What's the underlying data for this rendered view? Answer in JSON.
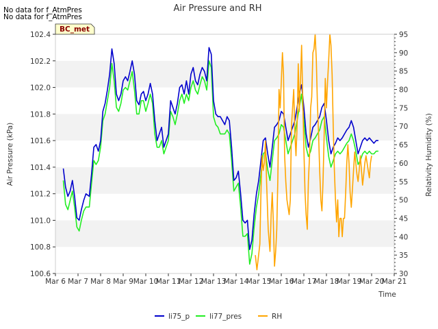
{
  "notes": [
    "No data for f_AtmPres",
    "No data for f_AtmPres"
  ],
  "badge": "BC_met",
  "chart_data": {
    "type": "line",
    "title": "Air Pressure and RH",
    "xlabel": "Time",
    "ylabel": "Air Pressure (kPa)",
    "y2label": "Relativity Humidity (%)",
    "xlim": [
      0,
      15
    ],
    "ylim": [
      100.6,
      102.4
    ],
    "y2lim": [
      30,
      95
    ],
    "x_ticks": [
      "Mar 6",
      "Mar 7",
      "Mar 8",
      "Mar 9",
      "Mar 10",
      "Mar 11",
      "Mar 12",
      "Mar 13",
      "Mar 14",
      "Mar 15",
      "Mar 16",
      "Mar 17",
      "Mar 18",
      "Mar 19",
      "Mar 20",
      "Mar 21"
    ],
    "y_ticks": [
      "100.6",
      "100.8",
      "101.0",
      "101.2",
      "101.4",
      "101.6",
      "101.8",
      "102.0",
      "102.2",
      "102.4"
    ],
    "y2_ticks": [
      "30",
      "35",
      "40",
      "45",
      "50",
      "55",
      "60",
      "65",
      "70",
      "75",
      "80",
      "85",
      "90",
      "95"
    ],
    "grid": "horizontal bands",
    "legend_position": "bottom",
    "colors": {
      "li75_p": "#0000cc",
      "li77_pres": "#22ee22",
      "RH": "#ffa500",
      "band": "#f2f2f2",
      "badge_bg": "#ffffcc"
    },
    "series": [
      {
        "name": "li75_p",
        "axis": "left",
        "x": [
          0.35,
          0.45,
          0.55,
          0.65,
          0.75,
          0.85,
          0.95,
          1.05,
          1.15,
          1.25,
          1.35,
          1.5,
          1.6,
          1.7,
          1.8,
          1.9,
          2.0,
          2.1,
          2.2,
          2.3,
          2.4,
          2.5,
          2.6,
          2.7,
          2.8,
          2.9,
          3.0,
          3.1,
          3.2,
          3.3,
          3.4,
          3.5,
          3.6,
          3.7,
          3.8,
          3.9,
          4.0,
          4.1,
          4.2,
          4.3,
          4.4,
          4.5,
          4.6,
          4.7,
          4.8,
          4.9,
          5.0,
          5.1,
          5.2,
          5.3,
          5.4,
          5.5,
          5.6,
          5.7,
          5.8,
          5.9,
          6.0,
          6.1,
          6.2,
          6.3,
          6.4,
          6.5,
          6.6,
          6.7,
          6.8,
          6.9,
          7.0,
          7.1,
          7.2,
          7.3,
          7.4,
          7.5,
          7.6,
          7.7,
          7.8,
          7.9,
          8.0,
          8.1,
          8.2,
          8.3,
          8.4,
          8.5,
          8.6,
          8.7,
          8.8,
          8.9,
          9.0,
          9.1,
          9.2,
          9.3,
          9.4,
          9.5,
          9.6,
          9.7,
          9.8,
          9.9,
          10.0,
          10.1,
          10.2,
          10.3,
          10.4,
          10.5,
          10.6,
          10.7,
          10.8,
          10.9,
          11.0,
          11.1,
          11.2,
          11.3,
          11.4,
          11.5,
          11.6,
          11.7,
          11.8,
          11.9,
          12.0,
          12.1,
          12.2,
          12.3,
          12.4,
          12.5,
          12.6,
          12.7,
          12.8,
          12.9,
          13.0,
          13.1,
          13.2,
          13.3,
          13.4,
          13.5,
          13.6,
          13.7,
          13.8,
          13.9,
          14.0,
          14.1,
          14.2,
          14.3
        ],
        "y": [
          101.39,
          101.25,
          101.18,
          101.22,
          101.3,
          101.18,
          101.02,
          101.0,
          101.08,
          101.15,
          101.2,
          101.18,
          101.35,
          101.55,
          101.57,
          101.52,
          101.6,
          101.82,
          101.88,
          101.98,
          102.1,
          102.29,
          102.18,
          101.95,
          101.9,
          101.95,
          102.05,
          102.08,
          102.05,
          102.12,
          102.2,
          102.1,
          101.9,
          101.87,
          101.95,
          101.97,
          101.9,
          101.95,
          102.03,
          101.95,
          101.75,
          101.6,
          101.65,
          101.7,
          101.55,
          101.6,
          101.65,
          101.9,
          101.85,
          101.8,
          101.88,
          102.0,
          102.02,
          101.95,
          102.05,
          101.95,
          102.1,
          102.15,
          102.05,
          102.02,
          102.1,
          102.15,
          102.12,
          102.05,
          102.3,
          102.25,
          101.9,
          101.8,
          101.78,
          101.78,
          101.75,
          101.72,
          101.78,
          101.75,
          101.55,
          101.3,
          101.32,
          101.37,
          101.2,
          101.0,
          100.98,
          101.0,
          100.78,
          100.85,
          101.05,
          101.2,
          101.3,
          101.45,
          101.6,
          101.62,
          101.5,
          101.4,
          101.55,
          101.7,
          101.72,
          101.75,
          101.82,
          101.8,
          101.7,
          101.6,
          101.65,
          101.7,
          101.75,
          101.85,
          101.95,
          102.02,
          101.85,
          101.65,
          101.55,
          101.62,
          101.7,
          101.72,
          101.75,
          101.78,
          101.85,
          101.88,
          101.75,
          101.6,
          101.5,
          101.55,
          101.58,
          101.62,
          101.6,
          101.62,
          101.65,
          101.68,
          101.7,
          101.75,
          101.7,
          101.6,
          101.5,
          101.55,
          101.6,
          101.62,
          101.6,
          101.62,
          101.6,
          101.58,
          101.6,
          101.6
        ],
        "x_full": null
      },
      {
        "name": "li77_pres",
        "axis": "left",
        "x": [
          0.35,
          0.45,
          0.55,
          0.65,
          0.75,
          0.85,
          0.95,
          1.05,
          1.15,
          1.25,
          1.35,
          1.5,
          1.6,
          1.7,
          1.8,
          1.9,
          2.0,
          2.1,
          2.2,
          2.3,
          2.4,
          2.5,
          2.6,
          2.7,
          2.8,
          2.9,
          3.0,
          3.1,
          3.2,
          3.3,
          3.4,
          3.5,
          3.6,
          3.7,
          3.8,
          3.9,
          4.0,
          4.1,
          4.2,
          4.3,
          4.4,
          4.5,
          4.6,
          4.7,
          4.8,
          4.9,
          5.0,
          5.1,
          5.2,
          5.3,
          5.4,
          5.5,
          5.6,
          5.7,
          5.8,
          5.9,
          6.0,
          6.1,
          6.2,
          6.3,
          6.4,
          6.5,
          6.6,
          6.7,
          6.8,
          6.9,
          7.0,
          7.1,
          7.2,
          7.3,
          7.4,
          7.5,
          7.6,
          7.7,
          7.8,
          7.9,
          8.0,
          8.1,
          8.2,
          8.3,
          8.4,
          8.5,
          8.6,
          8.7,
          8.8,
          8.9,
          9.0,
          9.1,
          9.2,
          9.3,
          9.4,
          9.5,
          9.6,
          9.7,
          9.8,
          9.9,
          10.0,
          10.1,
          10.2,
          10.3,
          10.4,
          10.5,
          10.6,
          10.7,
          10.8,
          10.9,
          11.0,
          11.1,
          11.2,
          11.3,
          11.4,
          11.5,
          11.6,
          11.7,
          11.8,
          11.9,
          12.0,
          12.1,
          12.2,
          12.3,
          12.4,
          12.5,
          12.6,
          12.7,
          12.8,
          12.9,
          13.0,
          13.1,
          13.2,
          13.3,
          13.4,
          13.5,
          13.6,
          13.7,
          13.8,
          13.9,
          14.0,
          14.1,
          14.2,
          14.3
        ],
        "y": [
          101.3,
          101.12,
          101.08,
          101.15,
          101.22,
          101.1,
          100.95,
          100.92,
          101.0,
          101.07,
          101.1,
          101.1,
          101.28,
          101.45,
          101.42,
          101.45,
          101.55,
          101.75,
          101.8,
          101.9,
          102.0,
          102.18,
          102.05,
          101.85,
          101.82,
          101.88,
          101.98,
          102.0,
          101.98,
          102.05,
          102.12,
          101.98,
          101.8,
          101.8,
          101.9,
          101.9,
          101.82,
          101.88,
          101.95,
          101.88,
          101.65,
          101.55,
          101.55,
          101.6,
          101.5,
          101.55,
          101.6,
          101.82,
          101.78,
          101.72,
          101.8,
          101.9,
          101.95,
          101.88,
          101.95,
          101.9,
          102.0,
          102.05,
          101.98,
          101.95,
          102.02,
          102.08,
          102.05,
          101.98,
          102.2,
          102.15,
          101.78,
          101.72,
          101.7,
          101.65,
          101.65,
          101.65,
          101.68,
          101.65,
          101.45,
          101.22,
          101.25,
          101.28,
          101.1,
          100.88,
          100.88,
          100.9,
          100.67,
          100.75,
          100.95,
          101.1,
          101.2,
          101.35,
          101.5,
          101.52,
          101.38,
          101.3,
          101.45,
          101.6,
          101.62,
          101.65,
          101.72,
          101.7,
          101.6,
          101.5,
          101.55,
          101.6,
          101.65,
          101.75,
          101.85,
          101.95,
          101.75,
          101.55,
          101.48,
          101.52,
          101.6,
          101.62,
          101.65,
          101.68,
          101.75,
          101.78,
          101.62,
          101.48,
          101.4,
          101.45,
          101.5,
          101.52,
          101.5,
          101.52,
          101.55,
          101.58,
          101.6,
          101.65,
          101.6,
          101.52,
          101.42,
          101.45,
          101.5,
          101.52,
          101.5,
          101.52,
          101.5,
          101.5,
          101.52,
          101.52
        ],
        "x_full": null
      },
      {
        "name": "RH",
        "axis": "right",
        "x": [
          8.85,
          8.92,
          8.98,
          9.05,
          9.1,
          9.15,
          9.2,
          9.25,
          9.3,
          9.35,
          9.42,
          9.5,
          9.55,
          9.6,
          9.65,
          9.7,
          9.75,
          9.8,
          9.85,
          9.9,
          9.95,
          10.0,
          10.05,
          10.1,
          10.15,
          10.2,
          10.25,
          10.3,
          10.35,
          10.4,
          10.45,
          10.5,
          10.55,
          10.6,
          10.65,
          10.7,
          10.75,
          10.8,
          10.85,
          10.9,
          10.95,
          11.0,
          11.05,
          11.1,
          11.15,
          11.2,
          11.25,
          11.3,
          11.35,
          11.4,
          11.45,
          11.5,
          11.55,
          11.6,
          11.65,
          11.7,
          11.75,
          11.8,
          11.85,
          11.9,
          11.95,
          12.0,
          12.05,
          12.1,
          12.15,
          12.2,
          12.25,
          12.3,
          12.35,
          12.4,
          12.45,
          12.5,
          12.55,
          12.6,
          12.65,
          12.7,
          12.75,
          12.8,
          12.85,
          12.9,
          12.95,
          13.0,
          13.05,
          13.1,
          13.15,
          13.2,
          13.25,
          13.3,
          13.35,
          13.4,
          13.45,
          13.5,
          13.55,
          13.6,
          13.65,
          13.7,
          13.75,
          13.8,
          13.85,
          13.9,
          13.95,
          14.0
        ],
        "y": [
          35,
          31,
          34,
          38,
          52,
          62,
          58,
          60,
          66,
          55,
          42,
          36,
          46,
          52,
          44,
          32,
          36,
          42,
          56,
          80,
          75,
          82,
          90,
          84,
          62,
          55,
          50,
          48,
          46,
          50,
          70,
          75,
          80,
          68,
          62,
          70,
          87,
          74,
          82,
          92,
          78,
          64,
          52,
          46,
          42,
          55,
          62,
          75,
          78,
          90,
          91,
          95,
          88,
          76,
          68,
          58,
          50,
          47,
          55,
          68,
          83,
          75,
          82,
          88,
          95,
          92,
          84,
          70,
          58,
          50,
          44,
          50,
          40,
          45,
          45,
          40,
          45,
          45,
          52,
          60,
          65,
          60,
          52,
          48,
          53,
          58,
          63,
          60,
          57,
          55,
          58,
          62,
          58,
          54,
          57,
          60,
          62,
          60,
          58,
          56,
          60,
          62
        ],
        "x_full": null
      }
    ]
  }
}
